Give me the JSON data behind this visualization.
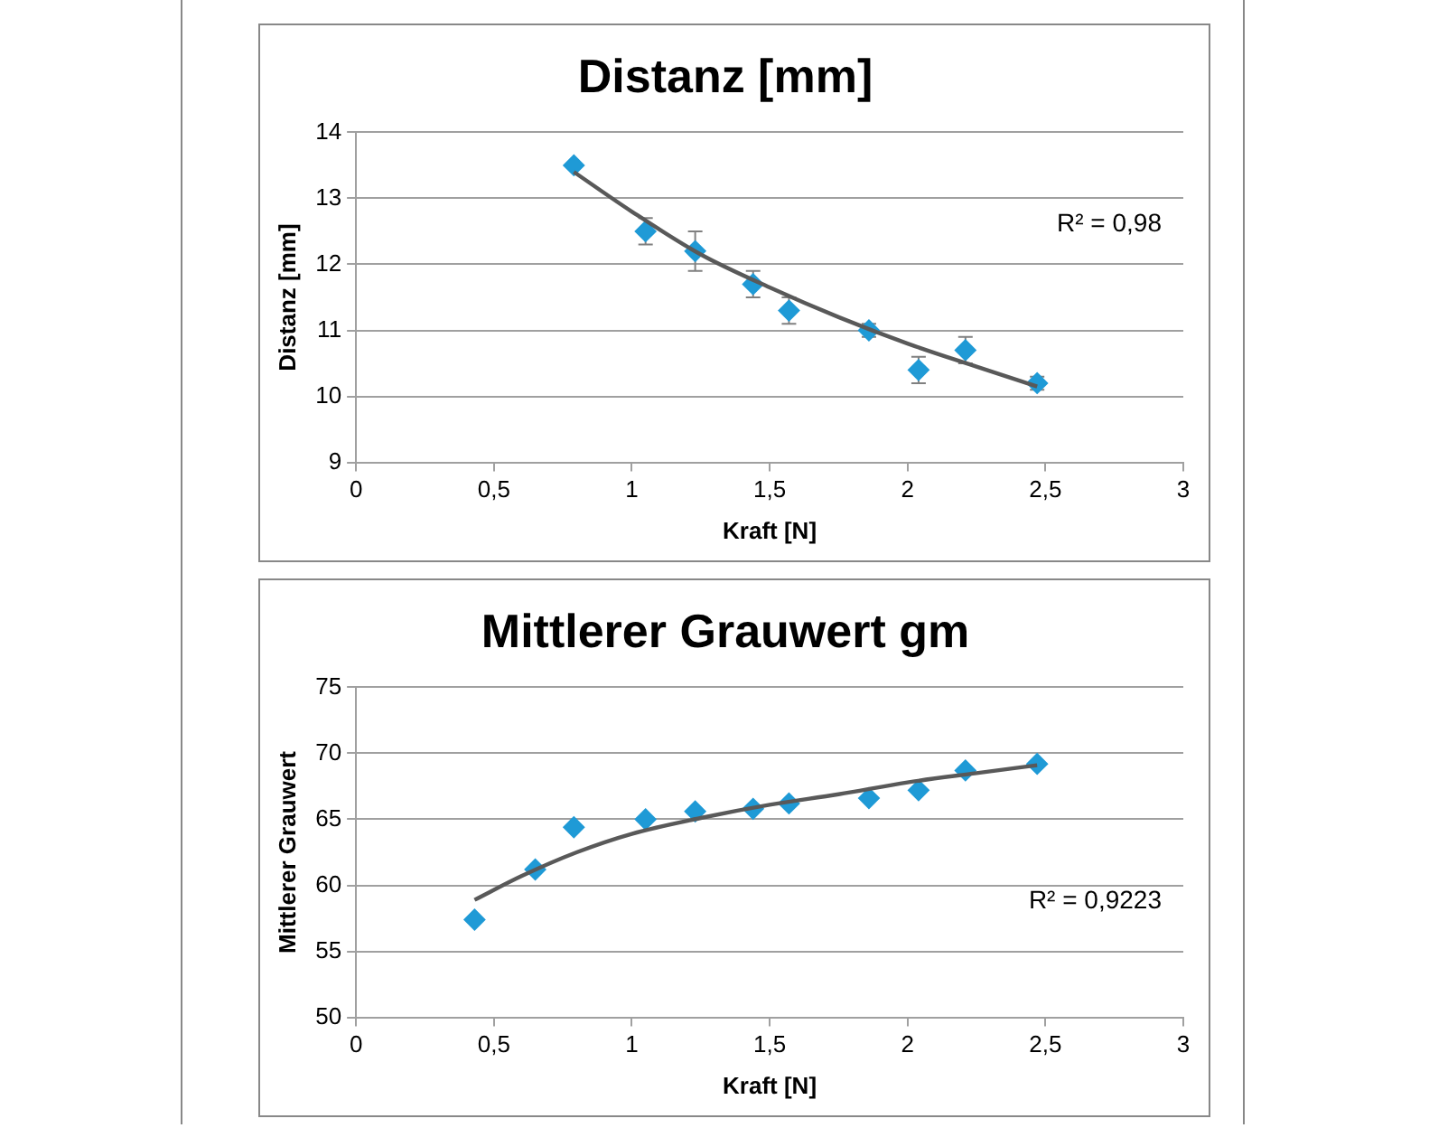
{
  "chart_data": [
    {
      "type": "scatter",
      "title": "Distanz [mm]",
      "xlabel": "Kraft [N]",
      "ylabel": "Distanz [mm]",
      "annotations": [
        "R² = 0,98"
      ],
      "xlim": [
        0,
        3
      ],
      "xticks": [
        0,
        {
          "value": 0.5,
          "label": "0,5"
        },
        1,
        {
          "value": 1.5,
          "label": "1,5"
        },
        2,
        {
          "value": 2.5,
          "label": "2,5"
        },
        3
      ],
      "ylim": [
        9,
        14
      ],
      "yticks": [
        9,
        10,
        11,
        12,
        13,
        14
      ],
      "grid": "y",
      "legend": false,
      "marker": "diamond",
      "series": [
        {
          "type": "scatter",
          "color": "#1f9ad6",
          "x": [
            0.79,
            1.05,
            1.23,
            1.44,
            1.57,
            1.86,
            2.04,
            2.21,
            2.47
          ],
          "values": [
            13.5,
            12.5,
            12.2,
            11.7,
            11.3,
            11.0,
            10.4,
            10.7,
            10.2
          ],
          "errors": [
            null,
            0.2,
            0.3,
            0.2,
            0.2,
            0.1,
            0.2,
            0.2,
            0.1
          ]
        },
        {
          "type": "line",
          "color": "#595959",
          "marker": "none",
          "x": [
            0.79,
            1.0,
            1.25,
            1.5,
            1.75,
            2.0,
            2.25,
            2.47
          ],
          "values": [
            13.4,
            12.8,
            12.15,
            11.65,
            11.2,
            10.8,
            10.45,
            10.15
          ]
        }
      ]
    },
    {
      "type": "scatter",
      "title": "Mittlerer Grauwert gm",
      "xlabel": "Kraft [N]",
      "ylabel": "Mittlerer Grauwert",
      "annotations": [
        "R² = 0,9223"
      ],
      "xlim": [
        0,
        3
      ],
      "xticks": [
        0,
        {
          "value": 0.5,
          "label": "0,5"
        },
        1,
        {
          "value": 1.5,
          "label": "1,5"
        },
        2,
        {
          "value": 2.5,
          "label": "2,5"
        },
        3
      ],
      "ylim": [
        50,
        75
      ],
      "yticks": [
        50,
        55,
        60,
        65,
        70,
        75
      ],
      "grid": "y",
      "legend": false,
      "marker": "diamond",
      "series": [
        {
          "type": "scatter",
          "color": "#1f9ad6",
          "x": [
            0.43,
            0.65,
            0.79,
            1.05,
            1.23,
            1.44,
            1.57,
            1.86,
            2.04,
            2.21,
            2.47
          ],
          "values": [
            57.4,
            61.2,
            64.4,
            65.0,
            65.6,
            65.8,
            66.2,
            66.6,
            67.2,
            68.7,
            69.2
          ]
        },
        {
          "type": "line",
          "color": "#595959",
          "marker": "none",
          "x": [
            0.43,
            0.6,
            0.8,
            1.0,
            1.25,
            1.5,
            1.75,
            2.0,
            2.25,
            2.47
          ],
          "values": [
            58.9,
            60.7,
            62.5,
            63.9,
            65.1,
            66.1,
            66.9,
            67.8,
            68.5,
            69.1
          ]
        }
      ]
    }
  ]
}
